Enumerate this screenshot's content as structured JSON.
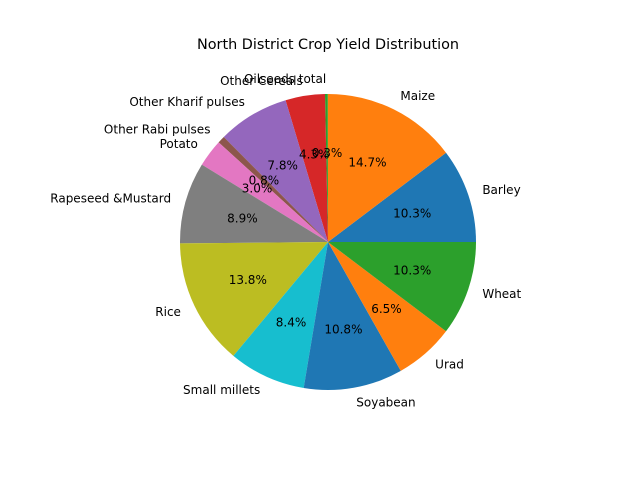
{
  "chart_data": {
    "type": "pie",
    "title": "North District Crop Yield Distribution",
    "start_angle_deg": 0,
    "counterclock": true,
    "categories": [
      "Barley",
      "Maize",
      "Oilseeds total",
      "Other Cereals",
      "Other Kharif pulses",
      "Other Rabi pulses",
      "Potato",
      "Rapeseed &Mustard",
      "Rice",
      "Small millets",
      "Soyabean",
      "Urad",
      "Wheat"
    ],
    "values": [
      10.3,
      14.7,
      0.3,
      4.3,
      7.8,
      0.8,
      3.0,
      8.9,
      13.8,
      8.4,
      10.8,
      6.5,
      10.3
    ],
    "percent_labels": [
      "10.3%",
      "14.7%",
      "0.3%",
      "4.3%",
      "7.8%",
      "0.8%",
      "3.0%",
      "8.9%",
      "13.8%",
      "8.4%",
      "10.8%",
      "6.5%",
      "10.3%"
    ],
    "colors": [
      "#1f77b4",
      "#ff7f0e",
      "#2ca02c",
      "#d62728",
      "#9467bd",
      "#8c564b",
      "#e377c2",
      "#7f7f7f",
      "#bcbd22",
      "#17becf",
      "#1f77b4",
      "#ff7f0e",
      "#2ca02c"
    ]
  }
}
